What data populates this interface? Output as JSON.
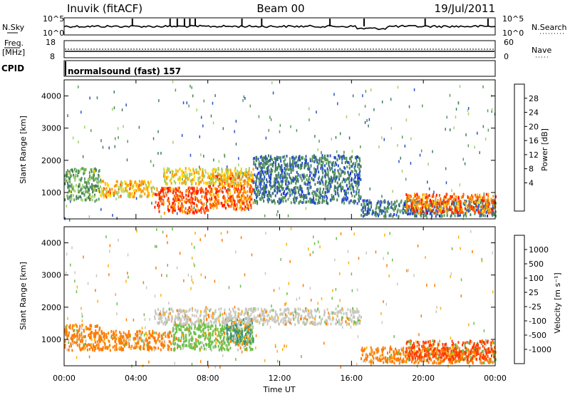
{
  "header": {
    "station": "Inuvik (fitACF)",
    "beam": "Beam 00",
    "date": "19/Jul/2011"
  },
  "top_panels": {
    "nsky_label": "N.Sky",
    "nsearch_label": "N.Search",
    "nsky_ticks": [
      "10^5",
      "10^0"
    ],
    "nsearch_ticks": [
      "10^5",
      "10^0"
    ],
    "freq_label_line1": "Freq.",
    "freq_label_line2": "[MHz]",
    "freq_ticks": [
      "18",
      "8"
    ],
    "nave_label": "Nave",
    "nave_ticks": [
      "60",
      "0"
    ],
    "cpid_label": "CPID",
    "cpid_text": "normalsound (fast) 157"
  },
  "chart_data": [
    {
      "type": "heatmap",
      "name": "power",
      "xlabel": "Time UT",
      "ylabel": "Slant Range [km]",
      "x_ticks": [
        "00:00",
        "04:00",
        "08:00",
        "12:00",
        "16:00",
        "20:00",
        "00:00"
      ],
      "x_range_hours": [
        0,
        24
      ],
      "y_range_km": [
        180,
        4500
      ],
      "y_ticks": [
        1000,
        2000,
        3000,
        4000
      ],
      "colorbar": {
        "label": "Power [dB]",
        "ticks": [
          "28",
          "24",
          "20",
          "16",
          "12",
          "8",
          "4"
        ],
        "range": [
          0,
          30
        ],
        "colors": [
          "#1a1aff",
          "#2a4fc8",
          "#3f7d5e",
          "#5a9a5a",
          "#9fd16a",
          "#ffd200",
          "#ff9a00",
          "#ff5a00",
          "#ff1a00"
        ]
      },
      "regions": [
        {
          "t0": 0.0,
          "t1": 2.0,
          "r0": 800,
          "r1": 1800,
          "level": 12
        },
        {
          "t0": 2.0,
          "t1": 5.0,
          "r0": 900,
          "r1": 1400,
          "level": 20
        },
        {
          "t0": 5.0,
          "t1": 8.0,
          "r0": 400,
          "r1": 1200,
          "level": 26
        },
        {
          "t0": 8.0,
          "t1": 10.5,
          "r0": 500,
          "r1": 1600,
          "level": 24
        },
        {
          "t0": 5.5,
          "t1": 10.5,
          "r0": 1300,
          "r1": 1800,
          "level": 18
        },
        {
          "t0": 10.5,
          "t1": 16.5,
          "r0": 700,
          "r1": 2200,
          "level": 8
        },
        {
          "t0": 16.5,
          "t1": 24.0,
          "r0": 300,
          "r1": 800,
          "level": 8
        },
        {
          "t0": 19.0,
          "t1": 24.0,
          "r0": 400,
          "r1": 1000,
          "level": 24
        }
      ]
    },
    {
      "type": "heatmap",
      "name": "velocity",
      "xlabel": "Time UT",
      "ylabel": "Slant Range [km]",
      "x_ticks": [
        "00:00",
        "04:00",
        "08:00",
        "12:00",
        "16:00",
        "20:00",
        "00:00"
      ],
      "x_range_hours": [
        0,
        24
      ],
      "y_range_km": [
        180,
        4500
      ],
      "y_ticks": [
        1000,
        2000,
        3000,
        4000
      ],
      "colorbar": {
        "label": "Velocity [m s⁻¹]",
        "ticks": [
          "1000",
          "500",
          "100",
          "25",
          "-25",
          "-100",
          "-500",
          "-1000"
        ],
        "colors": [
          "#1a3fbf",
          "#2a6fb0",
          "#3f8f7a",
          "#6ac04a",
          "#c8c8c0",
          "#ffb000",
          "#ff7a00",
          "#ff3a00",
          "#ff0000"
        ]
      },
      "regions": [
        {
          "t0": 0.0,
          "t1": 2.0,
          "r0": 700,
          "r1": 1500,
          "level": "-100"
        },
        {
          "t0": 2.0,
          "t1": 6.0,
          "r0": 700,
          "r1": 1300,
          "level": "-100"
        },
        {
          "t0": 6.0,
          "t1": 10.5,
          "r0": 700,
          "r1": 1500,
          "level": "100"
        },
        {
          "t0": 9.0,
          "t1": 10.5,
          "r0": 900,
          "r1": 1700,
          "level": "500"
        },
        {
          "t0": 5.0,
          "t1": 16.5,
          "r0": 1500,
          "r1": 2000,
          "level": "25"
        },
        {
          "t0": 16.5,
          "t1": 24.0,
          "r0": 300,
          "r1": 800,
          "level": "-100"
        },
        {
          "t0": 19.0,
          "t1": 24.0,
          "r0": 400,
          "r1": 1000,
          "level": "-500"
        }
      ]
    }
  ]
}
